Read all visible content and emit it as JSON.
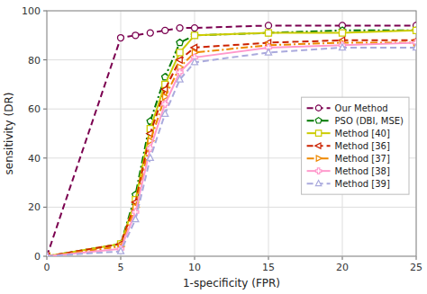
{
  "chart_data": {
    "type": "line",
    "xlabel": "1-specificity (FPR)",
    "ylabel": "sensitivity (DR)",
    "x": [
      0,
      5,
      6,
      7,
      8,
      9,
      10,
      15,
      20,
      25
    ],
    "xlim": [
      0,
      25
    ],
    "ylim": [
      0,
      100
    ],
    "xticks": [
      0,
      5,
      10,
      15,
      20,
      25
    ],
    "yticks": [
      0,
      20,
      40,
      60,
      80,
      100
    ],
    "grid": true,
    "legend": "right",
    "series": [
      {
        "name": "Our Method",
        "color": "#7b0050",
        "marker": "circle",
        "line_style": "dashed",
        "values": [
          0,
          89,
          90,
          91,
          92,
          93,
          93,
          94,
          94,
          94
        ]
      },
      {
        "name": "PSO (DBI, MSE)",
        "color": "#007700",
        "marker": "pentagon",
        "line_style": "dashdot",
        "values": [
          0,
          5,
          25,
          55,
          73,
          87,
          90,
          91,
          92,
          92
        ]
      },
      {
        "name": "Method [40]",
        "color": "#cccc00",
        "marker": "square",
        "line_style": "solid",
        "values": [
          0,
          5,
          23,
          52,
          70,
          83,
          90,
          91,
          91,
          92
        ]
      },
      {
        "name": "Method [36]",
        "color": "#cc2200",
        "marker": "triangle-left",
        "line_style": "dashed",
        "values": [
          0,
          5,
          22,
          50,
          68,
          80,
          85,
          87,
          88,
          88
        ]
      },
      {
        "name": "Method [37]",
        "color": "#ee8800",
        "marker": "triangle-right",
        "line_style": "dashdot",
        "values": [
          0,
          4,
          20,
          47,
          65,
          77,
          83,
          86,
          87,
          87
        ]
      },
      {
        "name": "Method [38]",
        "color": "#ff99cc",
        "marker": "plus",
        "line_style": "solid",
        "values": [
          0,
          3,
          18,
          44,
          62,
          75,
          81,
          85,
          86,
          87
        ]
      },
      {
        "name": "Method [39]",
        "color": "#aaaadd",
        "marker": "triangle-up",
        "line_style": "dashed",
        "values": [
          0,
          2,
          15,
          40,
          58,
          72,
          79,
          83,
          85,
          85
        ]
      }
    ]
  }
}
